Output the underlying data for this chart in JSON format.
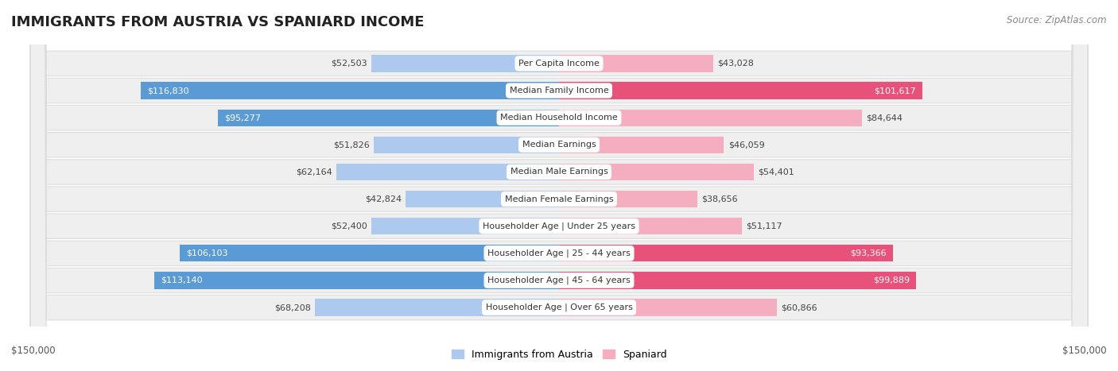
{
  "title": "IMMIGRANTS FROM AUSTRIA VS SPANIARD INCOME",
  "source": "Source: ZipAtlas.com",
  "categories": [
    "Per Capita Income",
    "Median Family Income",
    "Median Household Income",
    "Median Earnings",
    "Median Male Earnings",
    "Median Female Earnings",
    "Householder Age | Under 25 years",
    "Householder Age | 25 - 44 years",
    "Householder Age | 45 - 64 years",
    "Householder Age | Over 65 years"
  ],
  "austria_values": [
    52503,
    116830,
    95277,
    51826,
    62164,
    42824,
    52400,
    106103,
    113140,
    68208
  ],
  "spaniard_values": [
    43028,
    101617,
    84644,
    46059,
    54401,
    38656,
    51117,
    93366,
    99889,
    60866
  ],
  "austria_color_light": "#aec9ee",
  "austria_color_dark": "#5b9bd5",
  "spaniard_color_light": "#f4aec0",
  "spaniard_color_dark": "#e8527a",
  "austria_label": "Immigrants from Austria",
  "spaniard_label": "Spaniard",
  "max_value": 150000,
  "background_color": "#ffffff",
  "row_bg_color": "#efefef",
  "austria_text_threshold": 90000,
  "spaniard_text_threshold": 85000,
  "xlabel_left": "$150,000",
  "xlabel_right": "$150,000"
}
